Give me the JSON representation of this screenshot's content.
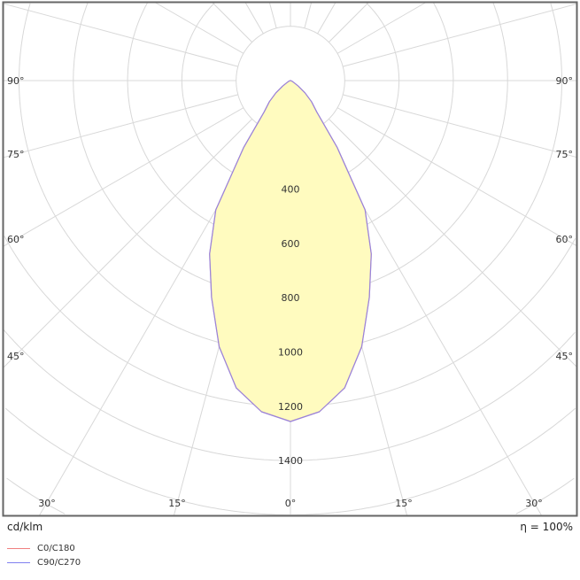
{
  "chart_data": {
    "type": "polar",
    "unit_label": "cd/klm",
    "efficiency_label": "η = 100%",
    "radial_ticks": [
      400,
      600,
      800,
      1000,
      1200,
      1400
    ],
    "radial_tick_labels": [
      "400",
      "600",
      "800",
      "1000",
      "1200",
      "1400"
    ],
    "radial_grid_step": 200,
    "angle_grid_step": 15,
    "angle_labels_left": [
      "90°",
      "75°",
      "60°",
      "45°",
      "30°",
      "15°"
    ],
    "angle_labels_right": [
      "15°",
      "30°",
      "45°",
      "60°",
      "75°",
      "90°"
    ],
    "angle_label_zero": "0°",
    "grid": true,
    "angles": [
      0,
      5,
      10,
      15,
      20,
      25,
      30,
      35,
      40,
      45,
      50,
      55,
      60,
      65,
      70,
      75,
      80,
      85,
      90
    ],
    "series": [
      {
        "name": "C0/C180",
        "color": "#f08080",
        "values": [
          1256,
          1225,
          1150,
          1015,
          850,
          705,
          550,
          300,
          150,
          110,
          70,
          35,
          15,
          8,
          4,
          2,
          1,
          0,
          0
        ]
      },
      {
        "name": "C90/C270",
        "color": "#8080f0",
        "values": [
          1256,
          1225,
          1150,
          1015,
          850,
          705,
          550,
          300,
          150,
          110,
          70,
          35,
          15,
          8,
          4,
          2,
          1,
          0,
          0
        ]
      }
    ],
    "fill_color": "#fffbbf",
    "legend_position": "bottom-left"
  }
}
